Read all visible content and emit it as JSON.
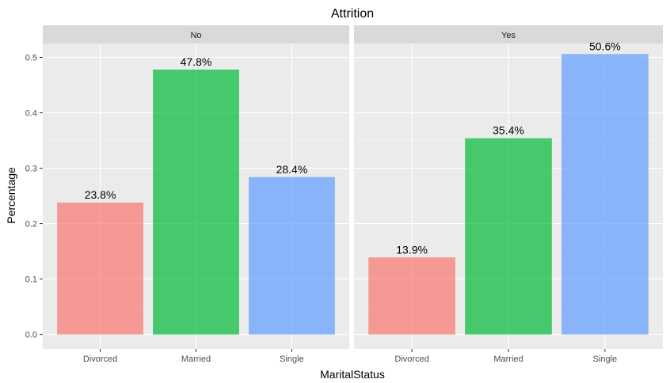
{
  "chart_data": {
    "type": "bar",
    "title": "Attrition",
    "xlabel": "MaritalStatus",
    "ylabel": "Percentage",
    "ylim": [
      0,
      0.525
    ],
    "yticks": [
      "0.0",
      "0.1",
      "0.2",
      "0.3",
      "0.4",
      "0.5"
    ],
    "categories": [
      "Divorced",
      "Married",
      "Single"
    ],
    "colors": [
      "#F8766D",
      "#00BA38",
      "#619CFF"
    ],
    "bar_opacity": 0.7,
    "facets": [
      {
        "label": "No",
        "values": [
          0.238,
          0.478,
          0.284
        ],
        "labels": [
          "23.8%",
          "47.8%",
          "28.4%"
        ]
      },
      {
        "label": "Yes",
        "values": [
          0.139,
          0.354,
          0.506
        ],
        "labels": [
          "13.9%",
          "35.4%",
          "50.6%"
        ]
      }
    ],
    "grid": true,
    "legend": "none"
  }
}
